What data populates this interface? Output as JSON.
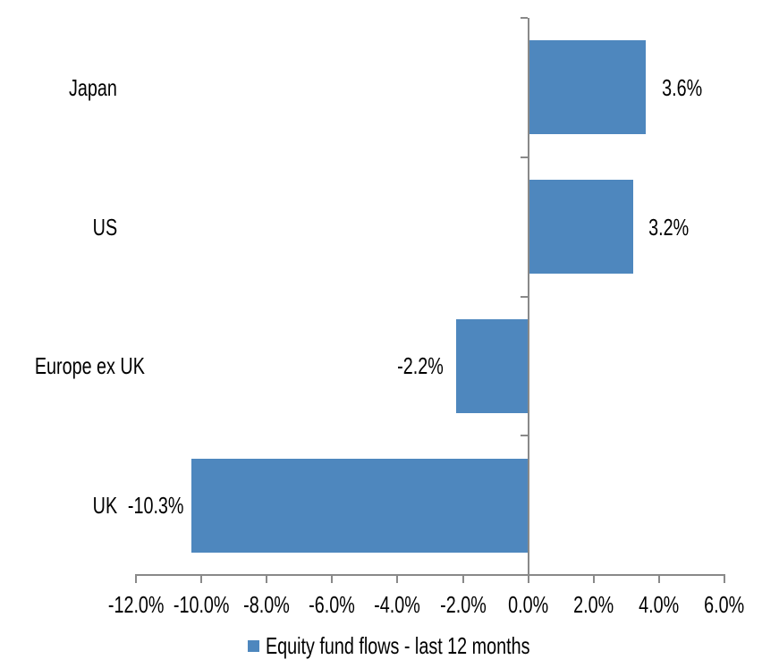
{
  "chart_data": {
    "type": "bar",
    "orientation": "horizontal",
    "title": "",
    "categories": [
      "Japan",
      "US",
      "Europe ex UK",
      "UK"
    ],
    "values": [
      3.6,
      3.2,
      -2.2,
      -10.3
    ],
    "value_labels": [
      "3.6%",
      "3.2%",
      "-2.2%",
      "-10.3%"
    ],
    "series_name": "Equity fund flows - last 12 months",
    "xlim": [
      -12,
      6
    ],
    "x_ticks": [
      -12,
      -10,
      -8,
      -6,
      -4,
      -2,
      0,
      2,
      4,
      6
    ],
    "x_tick_labels": [
      "-12.0%",
      "-10.0%",
      "-8.0%",
      "-6.0%",
      "-4.0%",
      "-2.0%",
      "0.0%",
      "2.0%",
      "4.0%",
      "6.0%"
    ],
    "grid": false,
    "legend_position": "bottom",
    "bar_color": "#4E87BE",
    "axis_color": "#898989",
    "text_color": "#000000"
  },
  "legend": {
    "label": "Equity fund flows - last 12 months"
  }
}
